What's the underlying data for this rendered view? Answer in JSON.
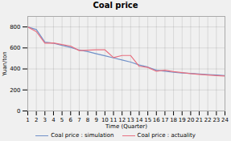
{
  "chart_data": {
    "type": "line",
    "title": "Coal price",
    "xlabel": "Time (Quarter)",
    "ylabel": "Yuan/ton",
    "x": [
      1,
      2,
      3,
      4,
      5,
      6,
      7,
      8,
      9,
      10,
      11,
      12,
      13,
      14,
      15,
      16,
      17,
      18,
      19,
      20,
      21,
      22,
      23,
      24
    ],
    "series": [
      {
        "name": "Coal price : simulation",
        "color": "#7090c8",
        "values": [
          800,
          775,
          655,
          645,
          625,
          605,
          580,
          565,
          545,
          525,
          505,
          485,
          465,
          438,
          418,
          388,
          378,
          368,
          362,
          357,
          352,
          347,
          342,
          337
        ]
      },
      {
        "name": "Coal price : actuality",
        "color": "#e87080",
        "values": [
          800,
          755,
          645,
          648,
          632,
          618,
          575,
          578,
          582,
          582,
          508,
          528,
          528,
          425,
          415,
          378,
          388,
          375,
          365,
          355,
          348,
          342,
          337,
          332
        ]
      }
    ],
    "xlim": [
      1,
      24
    ],
    "ylim": [
      0,
      900
    ],
    "xticks": [
      1,
      2,
      3,
      4,
      5,
      6,
      7,
      8,
      9,
      10,
      11,
      12,
      13,
      14,
      15,
      16,
      17,
      18,
      19,
      20,
      21,
      22,
      23,
      24
    ],
    "yticks": [
      0,
      200,
      400,
      600,
      800
    ],
    "grid": true,
    "legend": "bottom"
  }
}
